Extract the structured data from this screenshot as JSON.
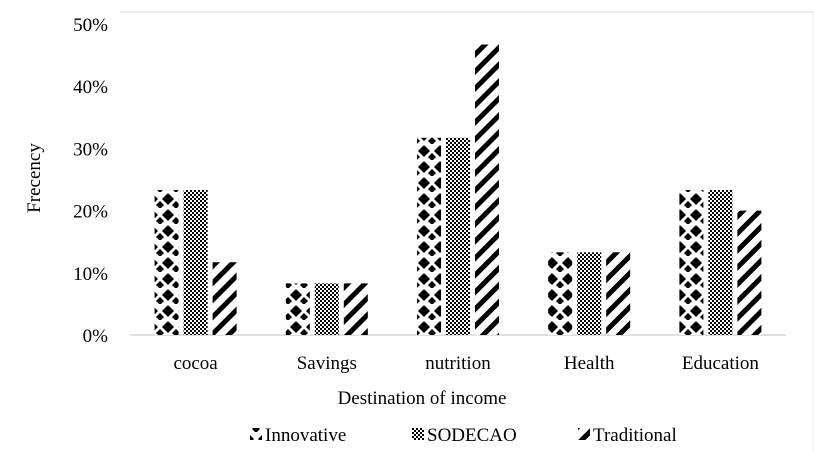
{
  "chart_data": {
    "type": "bar",
    "xlabel": "Destination of income",
    "ylabel": "Frecency",
    "categories": [
      "cocoa",
      "Savings",
      "nutrition",
      "Health",
      "Education"
    ],
    "series": [
      {
        "name": "Innovative",
        "values": [
          23.3,
          8.3,
          31.7,
          13.3,
          23.3
        ]
      },
      {
        "name": "SODECAO",
        "values": [
          23.3,
          8.3,
          31.7,
          13.3,
          23.3
        ]
      },
      {
        "name": "Traditional",
        "values": [
          11.7,
          8.3,
          46.7,
          13.3,
          20.0
        ]
      }
    ],
    "ylim": [
      0,
      50
    ],
    "yticks": [
      "0%",
      "10%",
      "20%",
      "30%",
      "40%",
      "50%"
    ],
    "legend_position": "bottom",
    "grid": false,
    "patterns": [
      "diamond-dots",
      "checker",
      "diagonal-stripes"
    ],
    "colors": {
      "bars": "#000000",
      "background": "#ffffff"
    }
  }
}
